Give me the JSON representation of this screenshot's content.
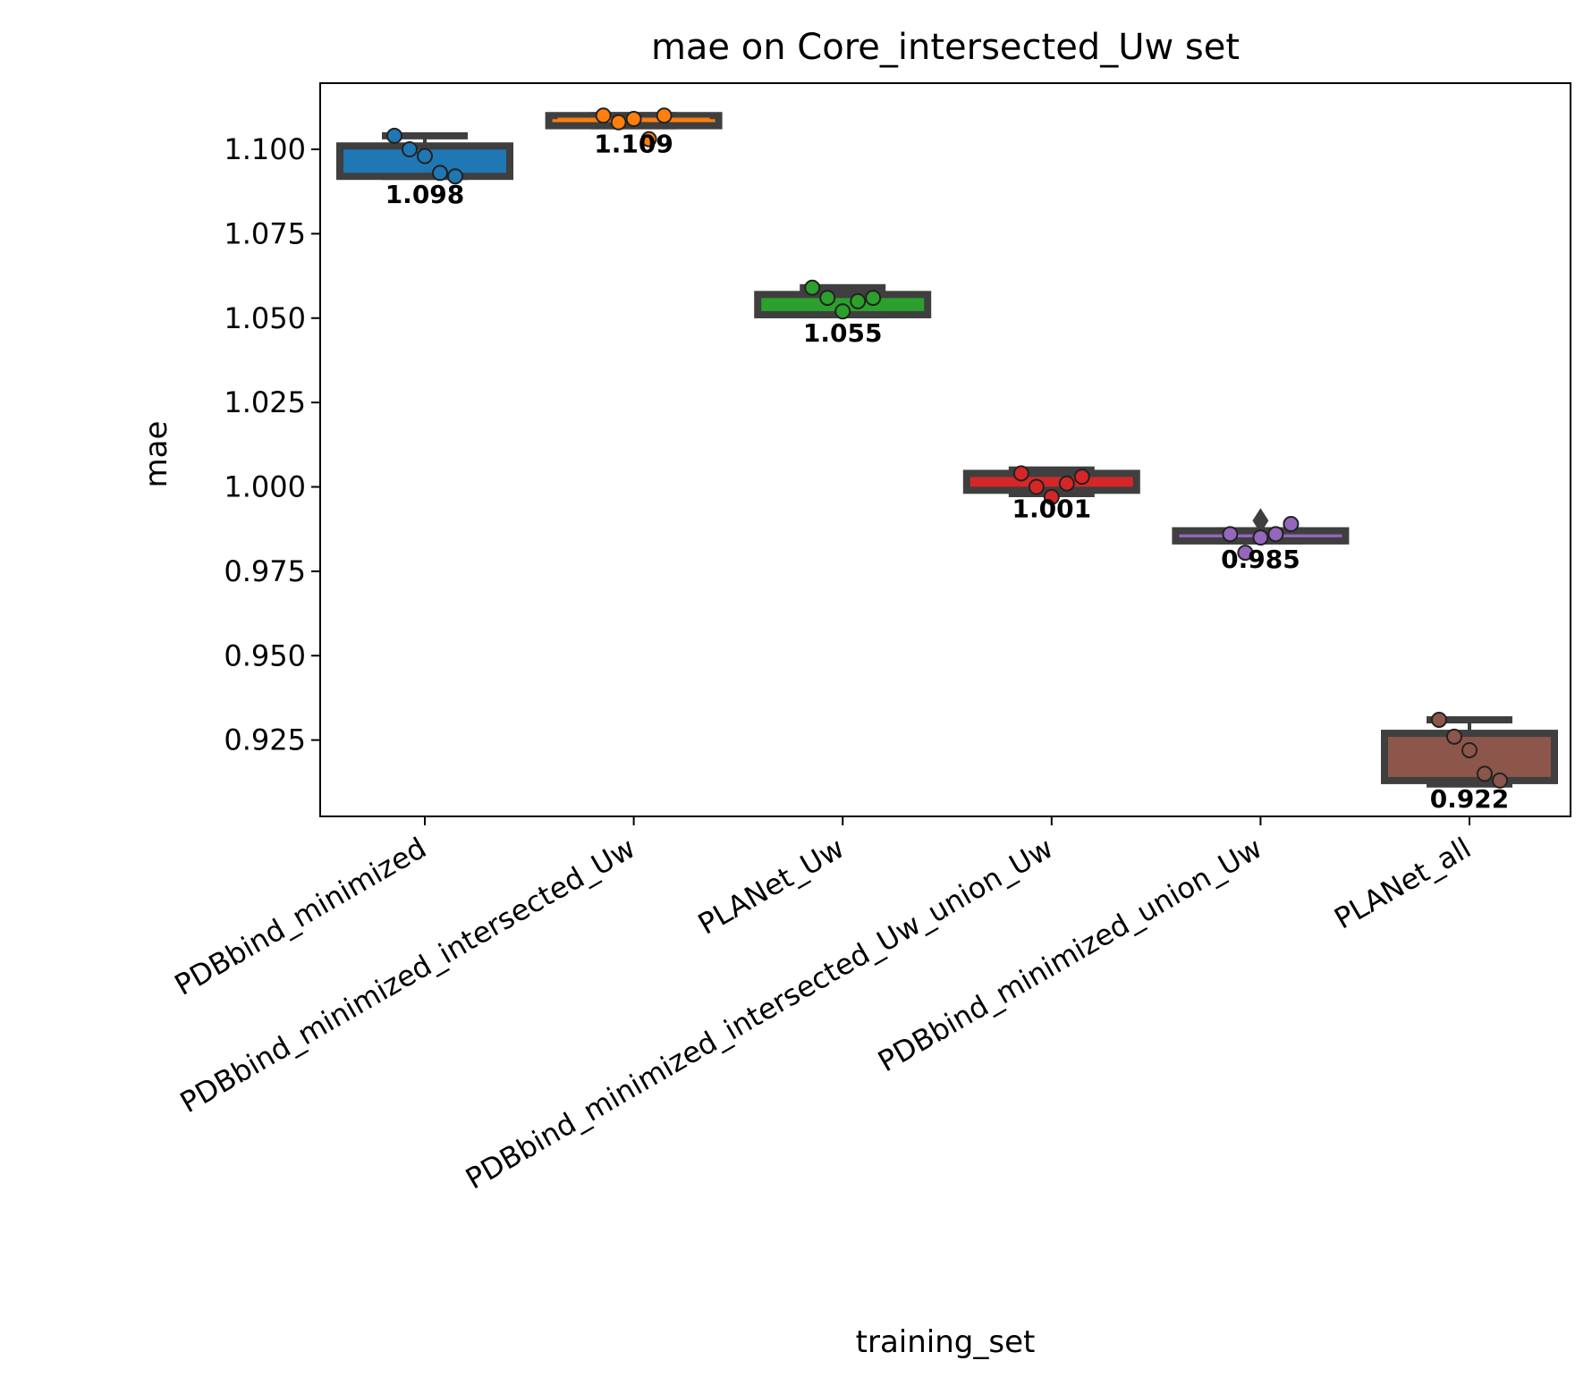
{
  "chart_data": {
    "type": "box",
    "title": "mae on Core_intersected_Uw set",
    "xlabel": "training_set",
    "ylabel": "mae",
    "ylim": [
      0.9,
      1.12
    ],
    "yticks": [
      0.925,
      0.95,
      0.975,
      1.0,
      1.025,
      1.05,
      1.075,
      1.1
    ],
    "ytick_labels": [
      "0.925",
      "0.950",
      "0.975",
      "1.000",
      "1.025",
      "1.050",
      "1.075",
      "1.100"
    ],
    "grid": false,
    "categories": [
      "PDBbind_minimized",
      "PDBbind_minimized_intersected_Uw",
      "PLANet_Uw",
      "PDBbind_minimized_intersected_Uw_union_Uw",
      "PDBbind_minimized_union_Uw",
      "PLANet_all"
    ],
    "series": [
      {
        "category": "PDBbind_minimized",
        "color": "#1f77b4",
        "whisker_low": 1.092,
        "q1": 1.092,
        "median": 1.096,
        "q3": 1.101,
        "whisker_high": 1.104,
        "outliers": [],
        "points": [
          1.104,
          1.1,
          1.098,
          1.093,
          1.092
        ],
        "mean_label": "1.098"
      },
      {
        "category": "PDBbind_minimized_intersected_Uw",
        "color": "#ff7f0e",
        "whisker_low": 1.107,
        "q1": 1.107,
        "median": 1.109,
        "q3": 1.11,
        "whisker_high": 1.11,
        "outliers": [],
        "points": [
          1.11,
          1.108,
          1.109,
          1.103,
          1.11
        ],
        "mean_label": "1.109"
      },
      {
        "category": "PLANet_Uw",
        "color": "#2ca02c",
        "whisker_low": 1.051,
        "q1": 1.051,
        "median": 1.054,
        "q3": 1.057,
        "whisker_high": 1.059,
        "outliers": [],
        "points": [
          1.059,
          1.056,
          1.052,
          1.055,
          1.056
        ],
        "mean_label": "1.055"
      },
      {
        "category": "PDBbind_minimized_intersected_Uw_union_Uw",
        "color": "#d62728",
        "whisker_low": 0.998,
        "q1": 0.999,
        "median": 1.001,
        "q3": 1.004,
        "whisker_high": 1.005,
        "outliers": [],
        "points": [
          1.004,
          1.0,
          0.997,
          1.001,
          1.003
        ],
        "mean_label": "1.001"
      },
      {
        "category": "PDBbind_minimized_union_Uw",
        "color": "#9467bd",
        "whisker_low": 0.984,
        "q1": 0.984,
        "median": 0.9855,
        "q3": 0.987,
        "whisker_high": 0.987,
        "outliers": [
          0.99
        ],
        "points": [
          0.986,
          0.9805,
          0.985,
          0.986,
          0.989
        ],
        "mean_label": "0.985"
      },
      {
        "category": "PLANet_all",
        "color": "#8c564b",
        "whisker_low": 0.912,
        "q1": 0.913,
        "median": 0.924,
        "q3": 0.927,
        "whisker_high": 0.931,
        "outliers": [],
        "points": [
          0.931,
          0.926,
          0.922,
          0.915,
          0.913
        ],
        "mean_label": "0.922"
      }
    ]
  }
}
